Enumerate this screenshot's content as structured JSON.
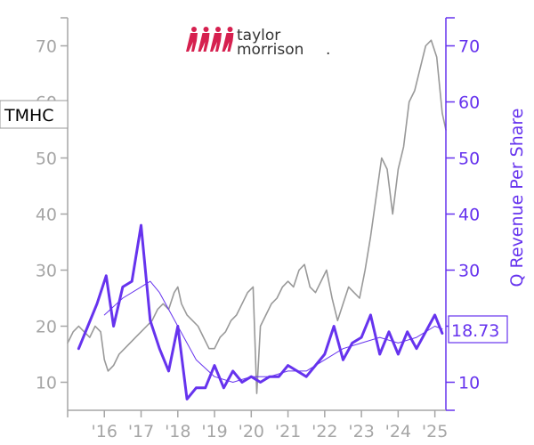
{
  "logo": {
    "line1": "taylor",
    "line2": "morrison",
    "mark": "."
  },
  "price_tag": "TMHC",
  "revenue_tag": "18.73",
  "colors": {
    "price": "#999999",
    "revenue": "#6633ee",
    "logo_red": "#d6204f",
    "axis_left": "#a6a6a6",
    "axis_right": "#6633ee"
  },
  "chart_data": {
    "type": "line",
    "ylabel_right": "Q Revenue Per Share",
    "x_ticks": [
      "'16",
      "'17",
      "'18",
      "'19",
      "'20",
      "'21",
      "'22",
      "'23",
      "'24",
      "'25"
    ],
    "x_tick_years": [
      2016,
      2017,
      2018,
      2019,
      2020,
      2021,
      2022,
      2023,
      2024,
      2025
    ],
    "xlim": [
      2015.0,
      2025.3
    ],
    "y_left": {
      "ticks": [
        10,
        20,
        30,
        40,
        50,
        60,
        70
      ],
      "ylim": [
        5,
        75
      ]
    },
    "y_right": {
      "ticks": [
        10,
        20,
        30,
        40,
        50,
        60,
        70
      ],
      "ylim": [
        5,
        75
      ]
    },
    "series": [
      {
        "axis": "left",
        "style": "price",
        "x": [
          2015.0,
          2015.15,
          2015.3,
          2015.45,
          2015.6,
          2015.75,
          2015.9,
          2016.0,
          2016.1,
          2016.25,
          2016.4,
          2016.55,
          2016.7,
          2016.85,
          2017.0,
          2017.15,
          2017.3,
          2017.45,
          2017.6,
          2017.75,
          2017.9,
          2018.0,
          2018.1,
          2018.25,
          2018.4,
          2018.55,
          2018.7,
          2018.85,
          2019.0,
          2019.15,
          2019.3,
          2019.45,
          2019.6,
          2019.75,
          2019.9,
          2020.05,
          2020.15,
          2020.25,
          2020.4,
          2020.55,
          2020.7,
          2020.85,
          2021.0,
          2021.15,
          2021.3,
          2021.45,
          2021.6,
          2021.75,
          2021.9,
          2022.05,
          2022.2,
          2022.35,
          2022.5,
          2022.65,
          2022.8,
          2022.95,
          2023.1,
          2023.25,
          2023.4,
          2023.55,
          2023.7,
          2023.85,
          2024.0,
          2024.15,
          2024.3,
          2024.45,
          2024.6,
          2024.75,
          2024.9,
          2025.05,
          2025.2,
          2025.3
        ],
        "values": [
          17,
          19,
          20,
          19,
          18,
          20,
          19,
          14,
          12,
          13,
          15,
          16,
          17,
          18,
          19,
          20,
          21,
          23,
          24,
          23,
          26,
          27,
          24,
          22,
          21,
          20,
          18,
          16,
          16,
          18,
          19,
          21,
          22,
          24,
          26,
          27,
          8,
          20,
          22,
          24,
          25,
          27,
          28,
          27,
          30,
          31,
          27,
          26,
          28,
          30,
          25,
          21,
          24,
          27,
          26,
          25,
          30,
          36,
          43,
          50,
          48,
          40,
          48,
          52,
          60,
          62,
          66,
          70,
          71,
          68,
          58,
          55
        ]
      },
      {
        "axis": "right",
        "style": "revenue",
        "x": [
          2015.3,
          2015.55,
          2015.8,
          2016.05,
          2016.25,
          2016.5,
          2016.75,
          2017.0,
          2017.25,
          2017.5,
          2017.75,
          2018.0,
          2018.25,
          2018.5,
          2018.75,
          2019.0,
          2019.25,
          2019.5,
          2019.75,
          2020.0,
          2020.25,
          2020.5,
          2020.75,
          2021.0,
          2021.25,
          2021.5,
          2021.75,
          2022.0,
          2022.25,
          2022.5,
          2022.75,
          2023.0,
          2023.25,
          2023.5,
          2023.75,
          2024.0,
          2024.25,
          2024.5,
          2024.75,
          2025.0,
          2025.2
        ],
        "values": [
          16,
          20,
          24,
          29,
          20,
          27,
          28,
          38,
          21,
          16,
          12,
          20,
          7,
          9,
          9,
          13,
          9,
          12,
          10,
          11,
          10,
          11,
          11,
          13,
          12,
          11,
          13,
          15,
          20,
          14,
          17,
          18,
          22,
          15,
          19,
          15,
          19,
          16,
          19,
          22,
          18.73
        ]
      },
      {
        "axis": "right",
        "style": "revenue-trend",
        "x": [
          2016.0,
          2016.5,
          2017.0,
          2017.25,
          2017.5,
          2018.0,
          2018.5,
          2019.0,
          2019.5,
          2020.0,
          2020.5,
          2021.0,
          2021.5,
          2022.0,
          2022.5,
          2023.0,
          2023.5,
          2024.0,
          2024.5,
          2025.0,
          2025.2
        ],
        "values": [
          22,
          25,
          27,
          28,
          26,
          20,
          14,
          11,
          10,
          11,
          11,
          12,
          12,
          14,
          16,
          17,
          18,
          17,
          18,
          20,
          19.5
        ]
      }
    ]
  }
}
